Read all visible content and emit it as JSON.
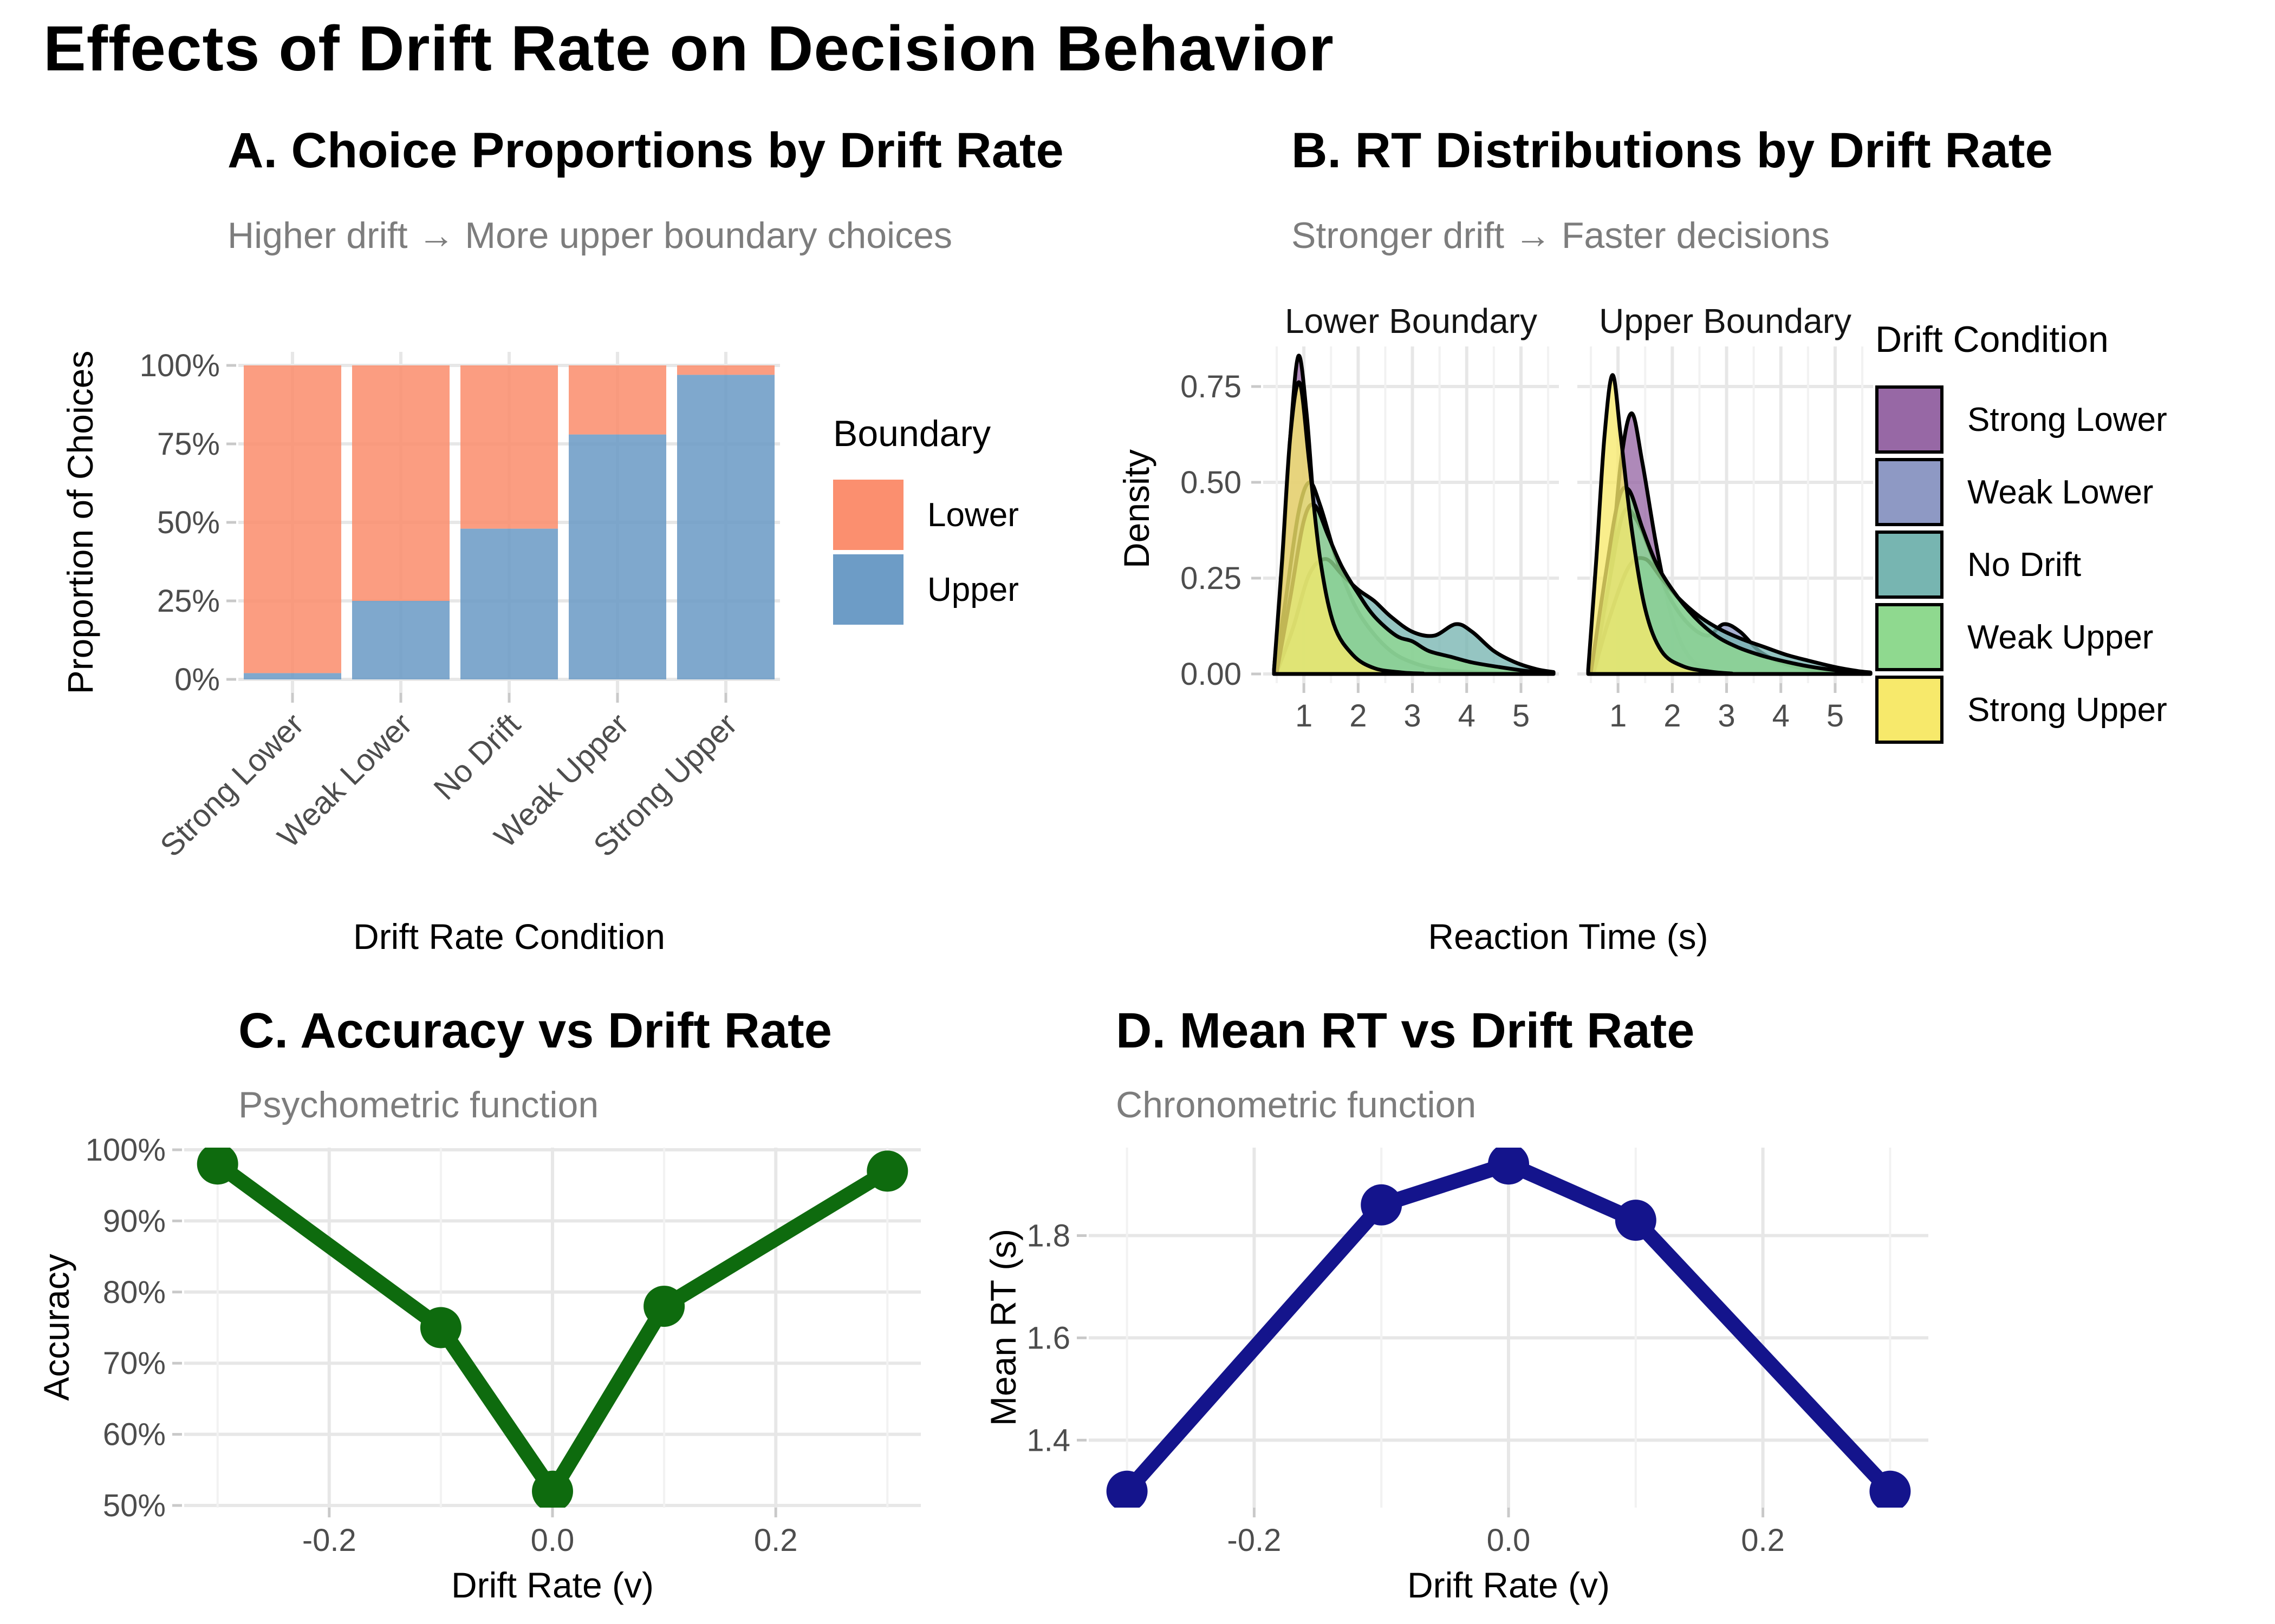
{
  "page": {
    "title": "Effects of Drift Rate on Decision Behavior"
  },
  "panels": {
    "a": {
      "title": "A. Choice Proportions by Drift Rate",
      "subtitle": "Higher drift → More upper boundary choices",
      "x_label": "Drift Rate Condition",
      "y_label": "Proportion of Choices"
    },
    "b": {
      "title": "B. RT Distributions by Drift Rate",
      "subtitle": "Stronger drift → Faster decisions",
      "x_label": "Reaction Time (s)",
      "y_label": "Density",
      "facet_labels": [
        "Lower Boundary",
        "Upper Boundary"
      ]
    },
    "c": {
      "title": "C. Accuracy vs Drift Rate",
      "subtitle": "Psychometric function",
      "x_label": "Drift Rate (v)",
      "y_label": "Accuracy"
    },
    "d": {
      "title": "D. Mean RT vs Drift Rate",
      "subtitle": "Chronometric function",
      "x_label": "Drift Rate (v)",
      "y_label": "Mean RT (s)"
    }
  },
  "chart_data": [
    {
      "id": "choice_proportions",
      "type": "bar",
      "stacked": true,
      "title": "A. Choice Proportions by Drift Rate",
      "xlabel": "Drift Rate Condition",
      "ylabel": "Proportion of Choices",
      "categories": [
        "Strong Lower",
        "Weak Lower",
        "No Drift",
        "Weak Upper",
        "Strong Upper"
      ],
      "series": [
        {
          "name": "Upper",
          "color": "#6D9CC6",
          "values": [
            2,
            25,
            48,
            78,
            97
          ]
        },
        {
          "name": "Lower",
          "color": "#FB8F6F",
          "values": [
            98,
            75,
            52,
            22,
            3
          ]
        }
      ],
      "ylim": [
        0,
        100
      ],
      "y_ticks": [
        {
          "label": "0%",
          "value": 0
        },
        {
          "label": "25%",
          "value": 25
        },
        {
          "label": "50%",
          "value": 50
        },
        {
          "label": "75%",
          "value": 75
        },
        {
          "label": "100%",
          "value": 100
        }
      ],
      "legend": {
        "title": "Boundary",
        "items": [
          {
            "label": "Lower",
            "color": "#FB8F6F"
          },
          {
            "label": "Upper",
            "color": "#6D9CC6"
          }
        ]
      }
    },
    {
      "id": "rt_distributions",
      "type": "area",
      "title": "B. RT Distributions by Drift Rate",
      "xlabel": "Reaction Time (s)",
      "ylabel": "Density",
      "x_ticks": [
        1,
        2,
        3,
        4,
        5
      ],
      "y_ticks": [
        {
          "label": "0.00",
          "value": 0
        },
        {
          "label": "0.25",
          "value": 0.25
        },
        {
          "label": "0.50",
          "value": 0.5
        },
        {
          "label": "0.75",
          "value": 0.75
        }
      ],
      "note": "density curves estimated from figure",
      "legend": {
        "title": "Drift Condition",
        "items": [
          {
            "label": "Strong Lower",
            "color": "#9768A5"
          },
          {
            "label": "Weak Lower",
            "color": "#8E99C4"
          },
          {
            "label": "No Drift",
            "color": "#77B5B1"
          },
          {
            "label": "Weak Upper",
            "color": "#8FD98F"
          },
          {
            "label": "Strong Upper",
            "color": "#F7E96B"
          }
        ]
      },
      "facets": [
        {
          "label": "Lower Boundary",
          "curves": [
            {
              "name": "Strong Lower",
              "color": "#9768A5",
              "points": [
                [
                  0.45,
                  0.01
                ],
                [
                  0.6,
                  0.28
                ],
                [
                  0.75,
                  0.62
                ],
                [
                  0.9,
                  0.83
                ],
                [
                  1.05,
                  0.68
                ],
                [
                  1.2,
                  0.42
                ],
                [
                  1.4,
                  0.2
                ],
                [
                  1.7,
                  0.07
                ],
                [
                  2.1,
                  0.02
                ],
                [
                  2.7,
                  0.006
                ],
                [
                  3.3,
                  0.002
                ]
              ]
            },
            {
              "name": "Weak Lower",
              "color": "#8E99C4",
              "points": [
                [
                  0.45,
                  0.005
                ],
                [
                  0.65,
                  0.18
                ],
                [
                  0.9,
                  0.42
                ],
                [
                  1.1,
                  0.5
                ],
                [
                  1.3,
                  0.44
                ],
                [
                  1.6,
                  0.3
                ],
                [
                  1.9,
                  0.19
                ],
                [
                  2.2,
                  0.12
                ],
                [
                  2.6,
                  0.06
                ],
                [
                  3.0,
                  0.03
                ],
                [
                  3.5,
                  0.012
                ],
                [
                  4.2,
                  0.004
                ],
                [
                  5.0,
                  0.001
                ]
              ]
            },
            {
              "name": "No Drift",
              "color": "#77B5B1",
              "points": [
                [
                  0.5,
                  0.004
                ],
                [
                  0.8,
                  0.12
                ],
                [
                  1.1,
                  0.26
                ],
                [
                  1.4,
                  0.3
                ],
                [
                  1.7,
                  0.26
                ],
                [
                  2.0,
                  0.22
                ],
                [
                  2.3,
                  0.19
                ],
                [
                  2.6,
                  0.15
                ],
                [
                  3.0,
                  0.11
                ],
                [
                  3.4,
                  0.1
                ],
                [
                  3.8,
                  0.13
                ],
                [
                  4.1,
                  0.11
                ],
                [
                  4.5,
                  0.06
                ],
                [
                  4.9,
                  0.03
                ],
                [
                  5.3,
                  0.012
                ],
                [
                  5.6,
                  0.005
                ]
              ]
            },
            {
              "name": "Weak Upper",
              "color": "#8FD98F",
              "points": [
                [
                  0.5,
                  0.005
                ],
                [
                  0.75,
                  0.2
                ],
                [
                  1.0,
                  0.4
                ],
                [
                  1.2,
                  0.44
                ],
                [
                  1.45,
                  0.36
                ],
                [
                  1.7,
                  0.28
                ],
                [
                  2.0,
                  0.21
                ],
                [
                  2.3,
                  0.15
                ],
                [
                  2.7,
                  0.1
                ],
                [
                  3.0,
                  0.085
                ],
                [
                  3.3,
                  0.06
                ],
                [
                  3.7,
                  0.045
                ],
                [
                  4.1,
                  0.03
                ],
                [
                  4.6,
                  0.018
                ],
                [
                  5.1,
                  0.008
                ],
                [
                  5.5,
                  0.003
                ]
              ]
            },
            {
              "name": "Strong Upper",
              "color": "#F7E96B",
              "points": [
                [
                  0.45,
                  0.01
                ],
                [
                  0.6,
                  0.3
                ],
                [
                  0.75,
                  0.62
                ],
                [
                  0.92,
                  0.76
                ],
                [
                  1.1,
                  0.55
                ],
                [
                  1.3,
                  0.3
                ],
                [
                  1.55,
                  0.13
                ],
                [
                  1.9,
                  0.05
                ],
                [
                  2.3,
                  0.015
                ],
                [
                  2.8,
                  0.004
                ],
                [
                  3.2,
                  0.001
                ]
              ]
            }
          ]
        },
        {
          "label": "Upper Boundary",
          "curves": [
            {
              "name": "Strong Lower",
              "color": "#9768A5",
              "points": [
                [
                  0.6,
                  0.005
                ],
                [
                  0.85,
                  0.25
                ],
                [
                  1.05,
                  0.55
                ],
                [
                  1.25,
                  0.68
                ],
                [
                  1.45,
                  0.55
                ],
                [
                  1.7,
                  0.34
                ],
                [
                  1.95,
                  0.17
                ],
                [
                  2.2,
                  0.07
                ],
                [
                  2.5,
                  0.02
                ],
                [
                  2.9,
                  0.006
                ],
                [
                  3.3,
                  0.001
                ]
              ]
            },
            {
              "name": "Weak Lower",
              "color": "#8E99C4",
              "points": [
                [
                  0.55,
                  0.004
                ],
                [
                  0.85,
                  0.25
                ],
                [
                  1.1,
                  0.42
                ],
                [
                  1.35,
                  0.4
                ],
                [
                  1.65,
                  0.3
                ],
                [
                  1.95,
                  0.2
                ],
                [
                  2.3,
                  0.13
                ],
                [
                  2.65,
                  0.1
                ],
                [
                  2.95,
                  0.13
                ],
                [
                  3.25,
                  0.11
                ],
                [
                  3.6,
                  0.06
                ],
                [
                  4.0,
                  0.03
                ],
                [
                  4.5,
                  0.012
                ],
                [
                  5.0,
                  0.004
                ]
              ]
            },
            {
              "name": "No Drift",
              "color": "#77B5B1",
              "points": [
                [
                  0.55,
                  0.004
                ],
                [
                  0.85,
                  0.15
                ],
                [
                  1.2,
                  0.28
                ],
                [
                  1.5,
                  0.3
                ],
                [
                  1.8,
                  0.25
                ],
                [
                  2.1,
                  0.2
                ],
                [
                  2.5,
                  0.15
                ],
                [
                  2.9,
                  0.115
                ],
                [
                  3.3,
                  0.09
                ],
                [
                  3.7,
                  0.07
                ],
                [
                  4.1,
                  0.05
                ],
                [
                  4.5,
                  0.035
                ],
                [
                  5.0,
                  0.018
                ],
                [
                  5.4,
                  0.008
                ],
                [
                  5.65,
                  0.004
                ]
              ]
            },
            {
              "name": "Weak Upper",
              "color": "#8FD98F",
              "points": [
                [
                  0.5,
                  0.005
                ],
                [
                  0.75,
                  0.24
                ],
                [
                  1.0,
                  0.45
                ],
                [
                  1.2,
                  0.48
                ],
                [
                  1.45,
                  0.38
                ],
                [
                  1.7,
                  0.29
                ],
                [
                  2.0,
                  0.22
                ],
                [
                  2.4,
                  0.15
                ],
                [
                  2.8,
                  0.1
                ],
                [
                  3.2,
                  0.07
                ],
                [
                  3.6,
                  0.05
                ],
                [
                  4.0,
                  0.035
                ],
                [
                  4.5,
                  0.02
                ],
                [
                  5.0,
                  0.01
                ],
                [
                  5.5,
                  0.004
                ]
              ]
            },
            {
              "name": "Strong Upper",
              "color": "#F7E96B",
              "points": [
                [
                  0.45,
                  0.01
                ],
                [
                  0.6,
                  0.3
                ],
                [
                  0.75,
                  0.62
                ],
                [
                  0.9,
                  0.78
                ],
                [
                  1.05,
                  0.62
                ],
                [
                  1.25,
                  0.38
                ],
                [
                  1.5,
                  0.17
                ],
                [
                  1.8,
                  0.06
                ],
                [
                  2.2,
                  0.02
                ],
                [
                  2.7,
                  0.006
                ],
                [
                  3.1,
                  0.001
                ]
              ]
            }
          ]
        }
      ]
    },
    {
      "id": "accuracy_vs_drift",
      "type": "line",
      "title": "C. Accuracy vs Drift Rate",
      "xlabel": "Drift Rate (v)",
      "ylabel": "Accuracy",
      "color": "#0E6B0E",
      "x": [
        -0.3,
        -0.1,
        0.0,
        0.1,
        0.3
      ],
      "y": [
        98,
        75,
        52,
        78,
        97
      ],
      "xlim": [
        -0.33,
        0.33
      ],
      "ylim": [
        49.7,
        100.3
      ],
      "x_ticks": [
        {
          "label": "-0.2",
          "value": -0.2
        },
        {
          "label": "0.0",
          "value": 0.0
        },
        {
          "label": "0.2",
          "value": 0.2
        }
      ],
      "x_minor": [
        -0.3,
        -0.1,
        0.1,
        0.3
      ],
      "y_ticks": [
        {
          "label": "50%",
          "value": 50
        },
        {
          "label": "60%",
          "value": 60
        },
        {
          "label": "70%",
          "value": 70
        },
        {
          "label": "80%",
          "value": 80
        },
        {
          "label": "90%",
          "value": 90
        },
        {
          "label": "100%",
          "value": 100
        }
      ]
    },
    {
      "id": "mean_rt_vs_drift",
      "type": "line",
      "title": "D. Mean RT vs Drift Rate",
      "xlabel": "Drift Rate (v)",
      "ylabel": "Mean RT (s)",
      "color": "#14148C",
      "x": [
        -0.3,
        -0.1,
        0.0,
        0.1,
        0.3
      ],
      "y": [
        1.3,
        1.86,
        1.94,
        1.83,
        1.3
      ],
      "xlim": [
        -0.33,
        0.33
      ],
      "ylim": [
        1.268,
        1.972
      ],
      "x_ticks": [
        {
          "label": "-0.2",
          "value": -0.2
        },
        {
          "label": "0.0",
          "value": 0.0
        },
        {
          "label": "0.2",
          "value": 0.2
        }
      ],
      "x_minor": [
        -0.3,
        -0.1,
        0.1,
        0.3
      ],
      "y_ticks": [
        {
          "label": "1.4",
          "value": 1.4
        },
        {
          "label": "1.6",
          "value": 1.6
        },
        {
          "label": "1.8",
          "value": 1.8
        }
      ]
    }
  ]
}
